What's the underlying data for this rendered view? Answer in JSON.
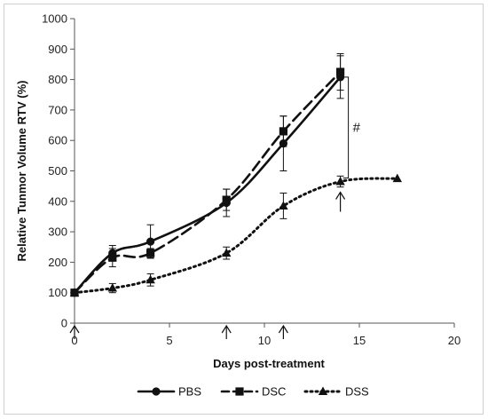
{
  "chart_data": {
    "type": "line",
    "title": "",
    "xlabel": "Days post-treatment",
    "ylabel": "Relative Tunmor Volume RTV (%)",
    "xlim": [
      0,
      20
    ],
    "ylim": [
      0,
      1000
    ],
    "xticks": [
      0,
      5,
      10,
      15,
      20
    ],
    "yticks": [
      0,
      100,
      200,
      300,
      400,
      500,
      600,
      700,
      800,
      900,
      1000
    ],
    "grid": false,
    "legend_position": "bottom",
    "series": [
      {
        "name": "PBS",
        "line_style": "solid",
        "marker": "circle",
        "x": [
          0,
          2,
          4,
          8,
          11,
          14
        ],
        "y": [
          100,
          230,
          268,
          395,
          590,
          808
        ],
        "err": [
          0,
          25,
          55,
          45,
          90,
          70
        ]
      },
      {
        "name": "DSC",
        "line_style": "dashed",
        "marker": "square",
        "x": [
          0,
          2,
          4,
          8,
          11,
          14
        ],
        "y": [
          100,
          215,
          230,
          405,
          630,
          825
        ],
        "err": [
          0,
          30,
          15,
          35,
          50,
          60
        ]
      },
      {
        "name": "DSS",
        "line_style": "dotted",
        "marker": "triangle",
        "x": [
          0,
          2,
          4,
          8,
          11,
          14,
          17
        ],
        "y": [
          100,
          115,
          142,
          230,
          385,
          465,
          475
        ],
        "err": [
          0,
          15,
          20,
          20,
          42,
          18,
          0
        ]
      }
    ],
    "treatment_days": [
      0,
      8,
      11,
      14
    ],
    "significance": {
      "label": "#",
      "x": 14,
      "y_from": 465,
      "y_to": 808
    }
  }
}
